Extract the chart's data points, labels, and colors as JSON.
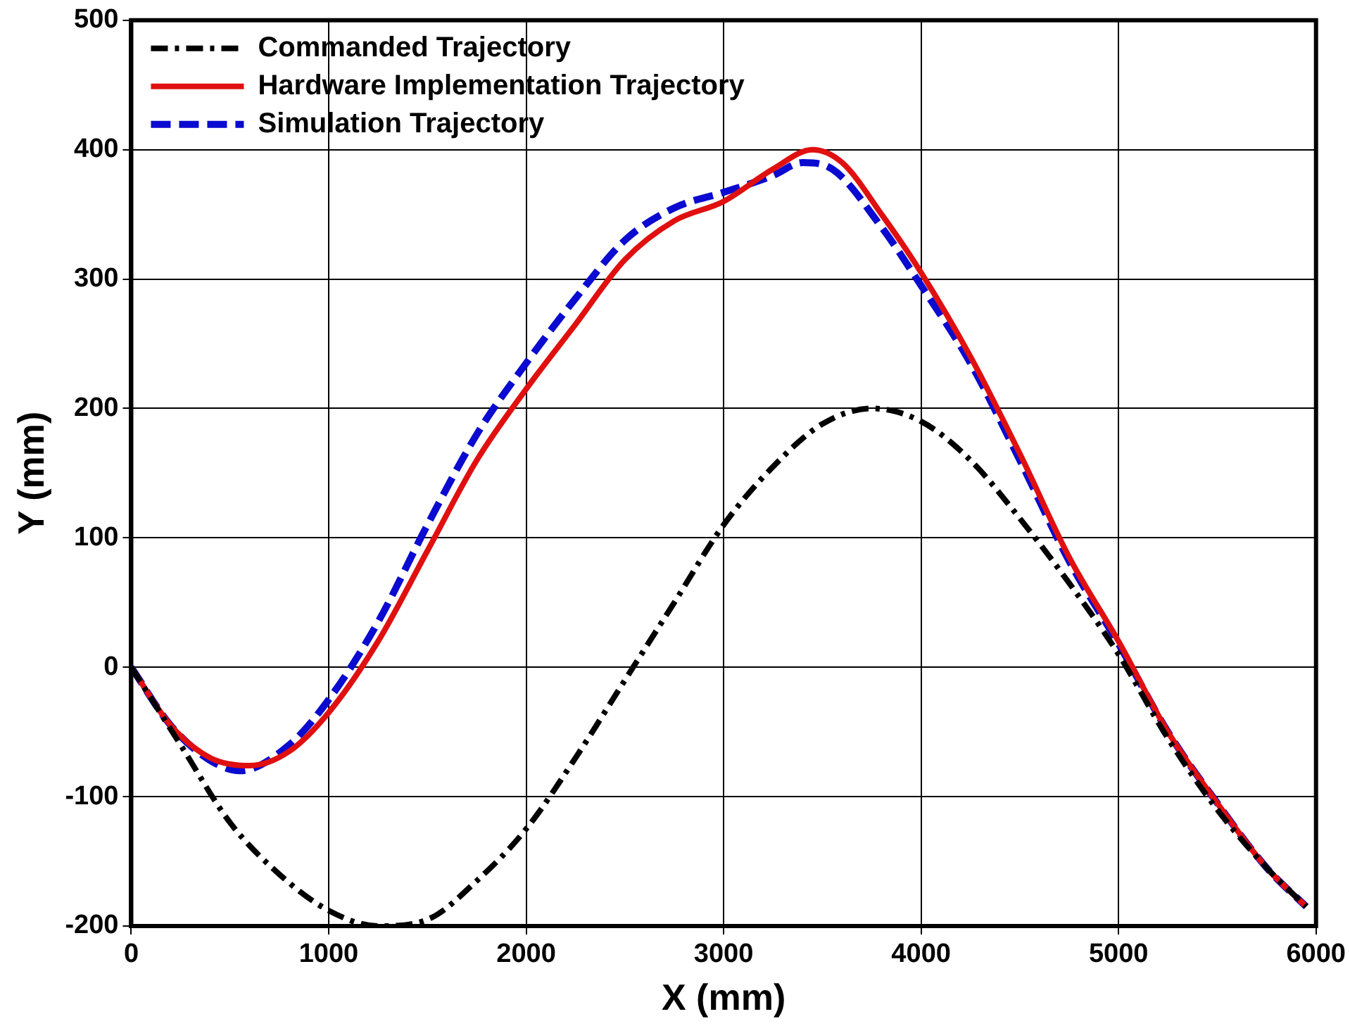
{
  "chart_data": {
    "type": "line",
    "xlabel": "X (mm)",
    "ylabel": "Y (mm)",
    "xlim": [
      0,
      6000
    ],
    "xticks": [
      0,
      1000,
      2000,
      3000,
      4000,
      5000,
      6000
    ],
    "ylim": [
      -200,
      500
    ],
    "yticks": [
      -200,
      -100,
      0,
      100,
      200,
      300,
      400,
      500
    ],
    "grid": true,
    "legend": "top left",
    "marker": "none",
    "series": [
      {
        "name": "Commanded Trajectory",
        "color": "#000000",
        "line_style": "dashdot",
        "x": [
          0,
          250,
          500,
          750,
          1000,
          1250,
          1500,
          1750,
          2000,
          2250,
          2500,
          2750,
          3000,
          3250,
          3500,
          3750,
          4000,
          4250,
          4500,
          4750,
          5000,
          5250,
          5500,
          5750,
          5950
        ],
        "values": [
          0,
          -60,
          -120,
          -160,
          -188,
          -200,
          -195,
          -165,
          -125,
          -70,
          -10,
          50,
          110,
          155,
          188,
          200,
          190,
          160,
          115,
          65,
          10,
          -55,
          -110,
          -155,
          -185
        ]
      },
      {
        "name": "Hardware Implementation Trajectory",
        "color": "#e01010",
        "line_style": "solid",
        "x": [
          0,
          200,
          400,
          600,
          800,
          1000,
          1250,
          1500,
          1750,
          2000,
          2250,
          2500,
          2750,
          3000,
          3250,
          3450,
          3600,
          3800,
          4000,
          4250,
          4500,
          4750,
          5000,
          5250,
          5500,
          5750,
          5950
        ],
        "values": [
          0,
          -45,
          -70,
          -76,
          -65,
          -35,
          20,
          90,
          160,
          215,
          265,
          315,
          345,
          360,
          385,
          400,
          390,
          350,
          305,
          240,
          165,
          85,
          20,
          -50,
          -105,
          -155,
          -185
        ]
      },
      {
        "name": "Simulation Trajectory",
        "color": "#0a0ad0",
        "line_style": "dashed",
        "x": [
          0,
          200,
          400,
          550,
          800,
          1000,
          1250,
          1500,
          1750,
          2000,
          2250,
          2500,
          2750,
          3000,
          3250,
          3400,
          3550,
          3800,
          4000,
          4250,
          4500,
          4750,
          5000,
          5250,
          5500,
          5750,
          5950
        ],
        "values": [
          0,
          -45,
          -72,
          -80,
          -60,
          -25,
          35,
          110,
          180,
          235,
          285,
          330,
          355,
          367,
          380,
          390,
          385,
          340,
          295,
          235,
          160,
          82,
          18,
          -50,
          -105,
          -155,
          -185
        ]
      }
    ]
  }
}
